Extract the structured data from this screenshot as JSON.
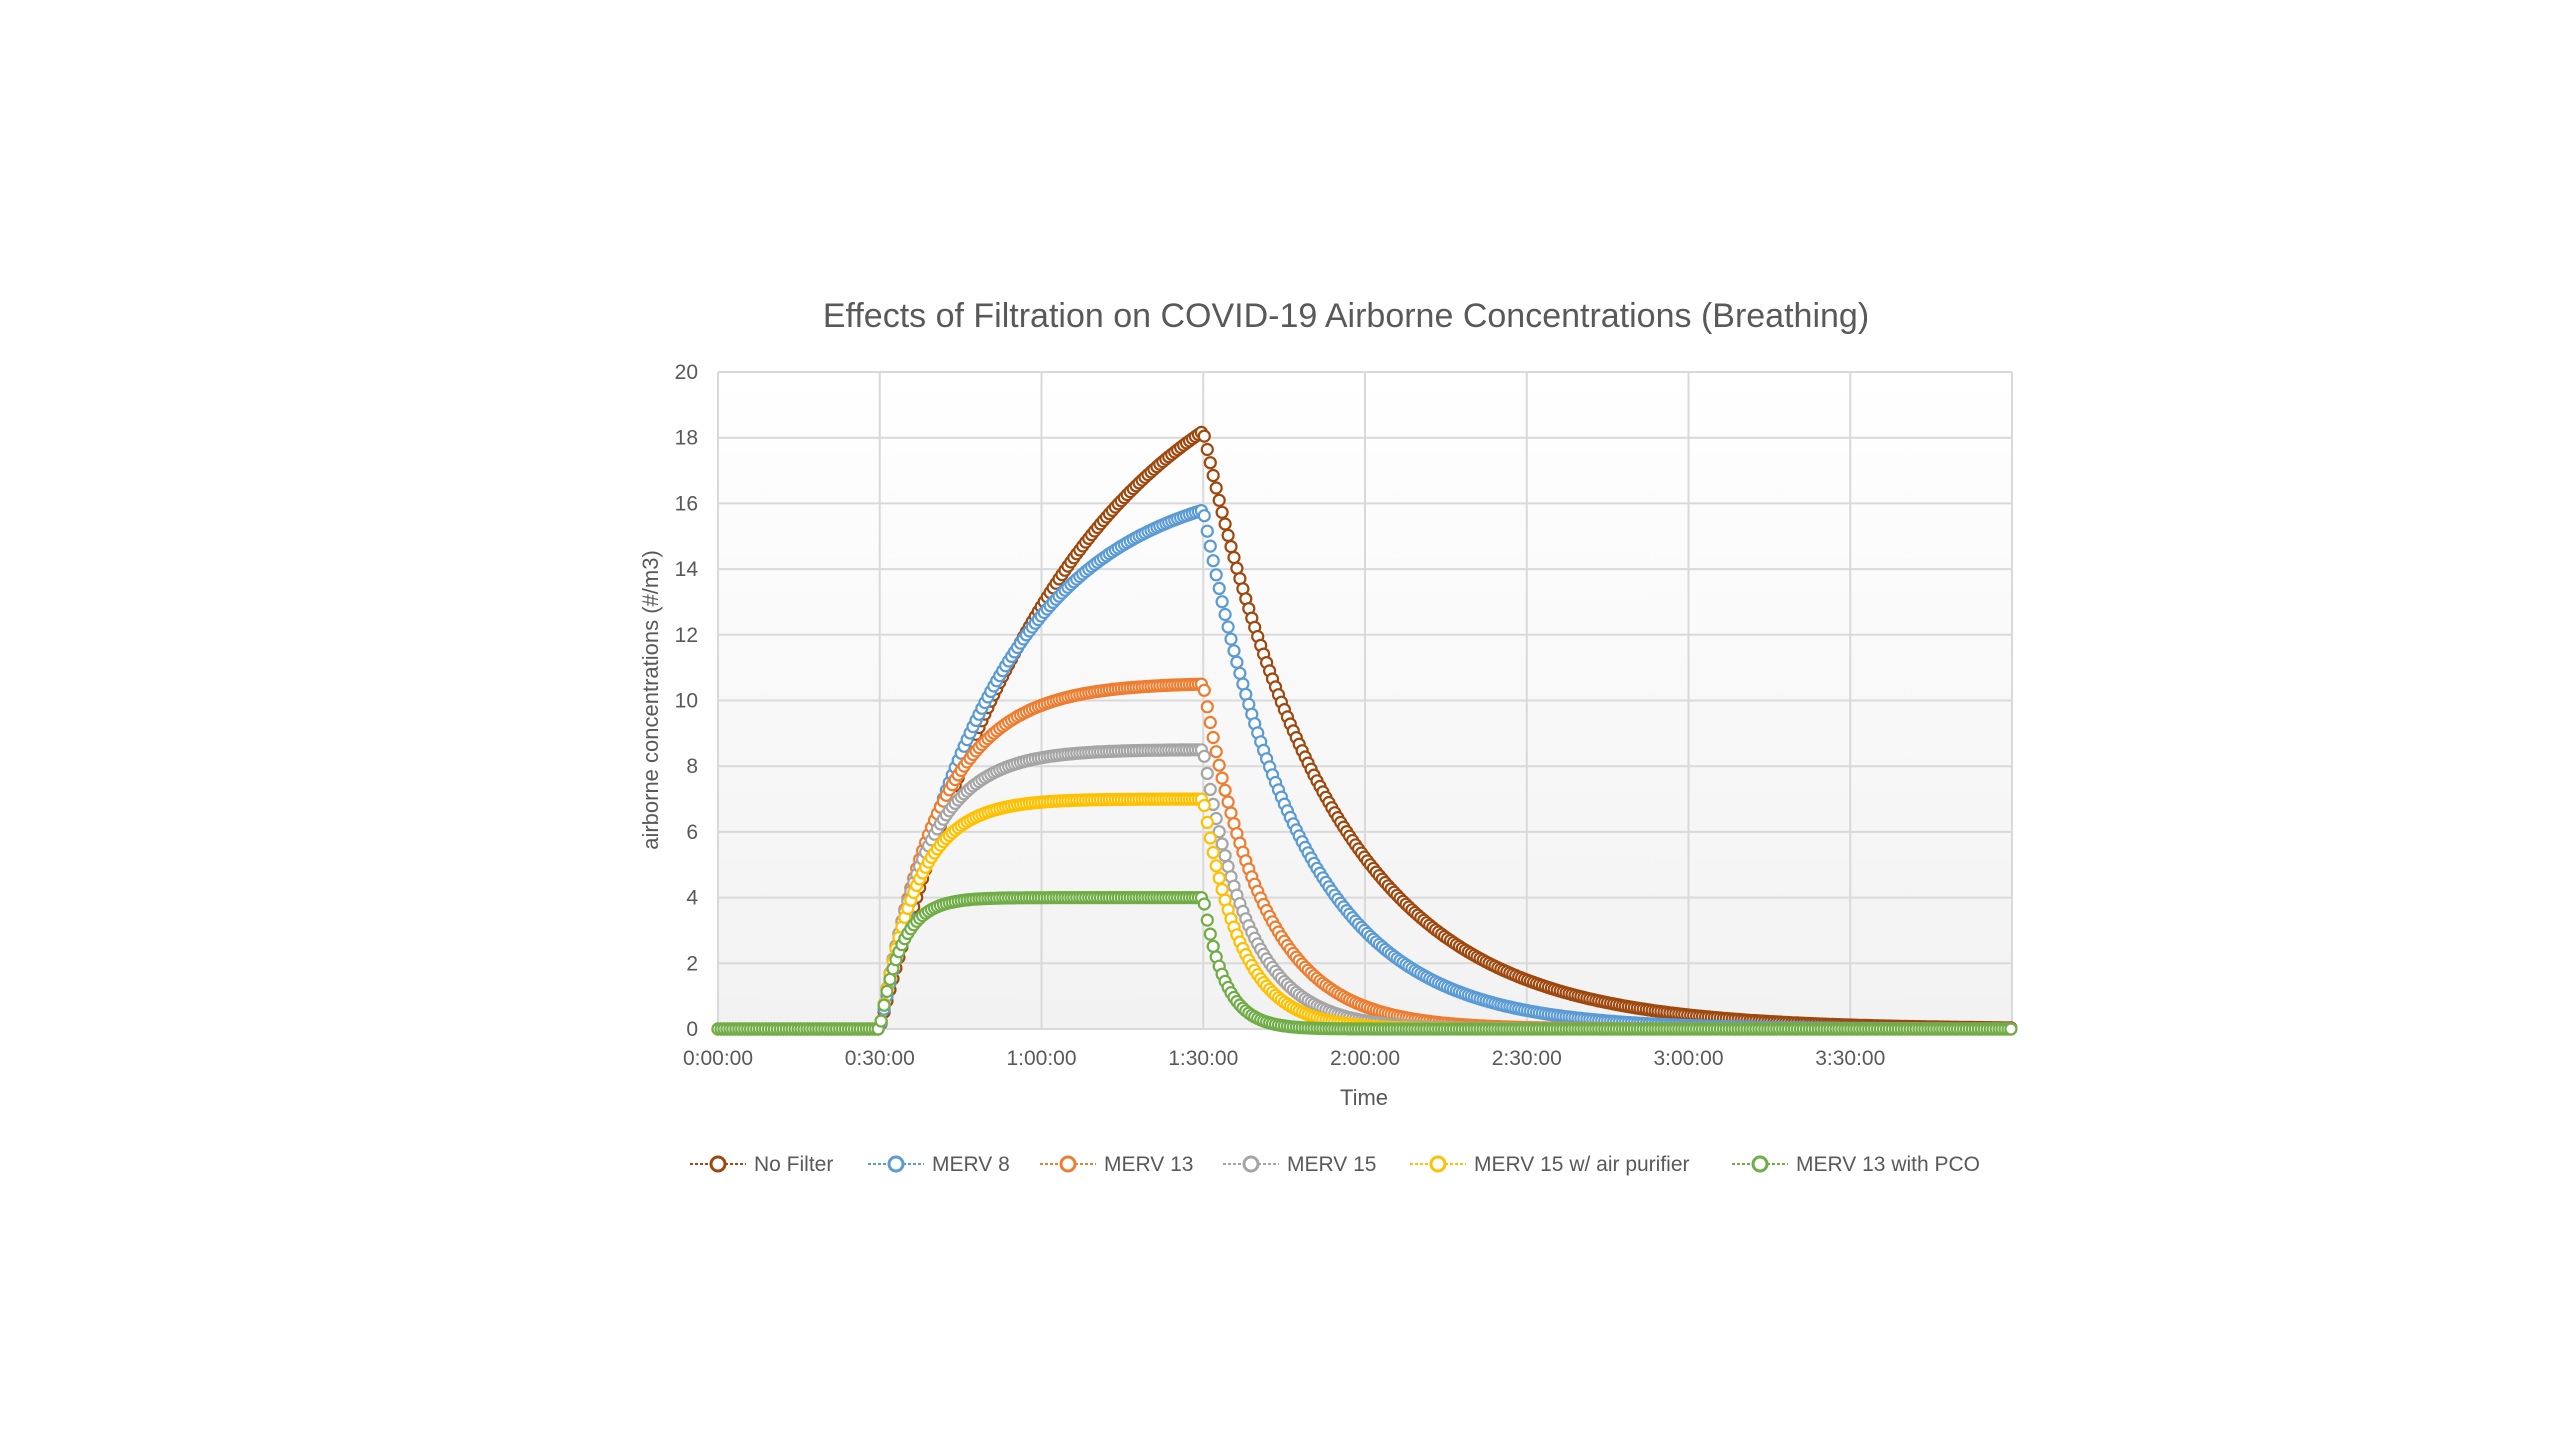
{
  "chart_data": {
    "type": "scatter",
    "title": "Effects of Filtration on COVID-19 Airborne Concentrations (Breathing)",
    "xlabel": "Time",
    "ylabel": "airborne concentrations (#/m3)",
    "xlim": [
      0,
      240
    ],
    "ylim": [
      0,
      20
    ],
    "x_ticks": [
      "0:00:00",
      "0:30:00",
      "1:00:00",
      "1:30:00",
      "2:00:00",
      "2:30:00",
      "3:00:00",
      "3:30:00"
    ],
    "y_ticks": [
      0,
      2,
      4,
      6,
      8,
      10,
      12,
      14,
      16,
      18,
      20
    ],
    "grid": true,
    "legend_position": "bottom",
    "emission_window_minutes": [
      30,
      90
    ],
    "series": [
      {
        "name": "No Filter",
        "color": "#9e480e",
        "peak": 18.2,
        "rise_tau": 34,
        "decay_tau": 24
      },
      {
        "name": "MERV 8",
        "color": "#5b9bd5",
        "peak": 15.8,
        "rise_tau": 22,
        "decay_tau": 18
      },
      {
        "name": "MERV 13",
        "color": "#ed7d31",
        "peak": 10.5,
        "rise_tau": 11,
        "decay_tau": 11
      },
      {
        "name": "MERV 15",
        "color": "#a5a5a5",
        "peak": 8.5,
        "rise_tau": 8.5,
        "decay_tau": 8.5
      },
      {
        "name": "MERV 15 w/ air purifier",
        "color": "#ffc000",
        "peak": 7.0,
        "rise_tau": 7,
        "decay_tau": 7
      },
      {
        "name": "MERV 13 with PCO",
        "color": "#70ad47",
        "peak": 4.0,
        "rise_tau": 4,
        "decay_tau": 4
      }
    ]
  }
}
